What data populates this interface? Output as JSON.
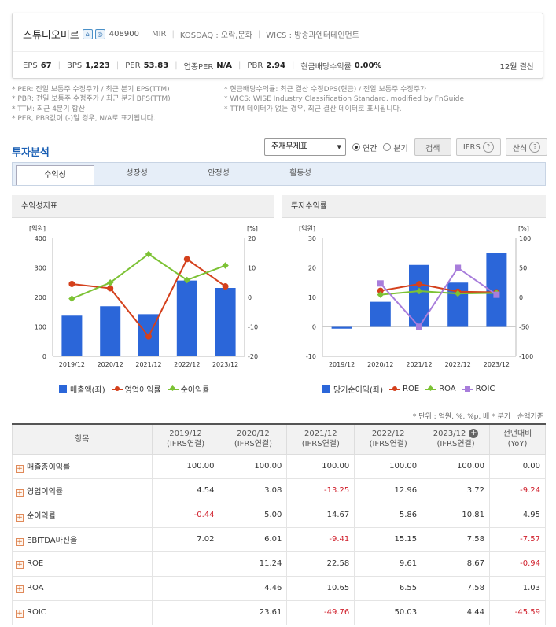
{
  "company": {
    "name": "스튜디오미르",
    "code": "408900",
    "ticker_en": "MIR",
    "market": "KOSDAQ : 오락,문화",
    "wics": "WICS : 방송과엔터테인먼트",
    "icon1": "home-icon",
    "icon2": "ir-icon"
  },
  "metrics": {
    "eps_label": "EPS",
    "eps": "67",
    "bps_label": "BPS",
    "bps": "1,223",
    "per_label": "PER",
    "per": "53.83",
    "sector_per_label": "업종PER",
    "sector_per": "N/A",
    "pbr_label": "PBR",
    "pbr": "2.94",
    "div_label": "현금배당수익률",
    "div": "0.00%",
    "fiscal": "12월 결산"
  },
  "notes": [
    "* PER: 전일 보통주 수정주가 / 최근 분기 EPS(TTM)",
    "* PBR: 전일 보통주 수정주가 / 최근 분기 BPS(TTM)",
    "* TTM: 최근 4분기 합산",
    "* PER, PBR값이 (-)일 경우, N/A로 표기됩니다.",
    "* 현금배당수익률: 최근 결산 수정DPS(현금) / 전일 보통주 수정주가",
    "* WICS: WISE Industry Classification Standard, modified by FnGuide",
    "* TTM 데이터가 없는 경우, 최근 결산 데이터로 표시됩니다."
  ],
  "section": {
    "title": "투자분석",
    "select_value": "주재무제표",
    "radio_annual": "연간",
    "radio_quarter": "분기",
    "search_btn": "검색",
    "ifrs_btn": "IFRS",
    "formula_btn": "산식"
  },
  "tabs": [
    "수익성",
    "성장성",
    "안정성",
    "활동성"
  ],
  "panels": {
    "left_title": "수익성지표",
    "right_title": "투자수익률"
  },
  "chart_data": [
    {
      "type": "bar",
      "title": "수익성지표",
      "categories": [
        "2019/12",
        "2020/12",
        "2021/12",
        "2022/12",
        "2023/12"
      ],
      "ylabel": "[억원]",
      "y2label": "[%]",
      "ylim": [
        0,
        400
      ],
      "y2lim": [
        -20,
        20
      ],
      "yticks": [
        "400",
        "300",
        "200",
        "100",
        "0"
      ],
      "y2ticks": [
        "20",
        "10",
        "0",
        "-10",
        "-20"
      ],
      "series": [
        {
          "name": "매출액(좌)",
          "type": "bar",
          "axis": "left",
          "color": "#2b66d9",
          "values": [
            138,
            170,
            143,
            257,
            232
          ]
        },
        {
          "name": "영업이익률",
          "type": "line",
          "axis": "right",
          "color": "#d4401c",
          "marker": "circle",
          "values": [
            4.54,
            3.08,
            -13.25,
            12.96,
            3.72
          ]
        },
        {
          "name": "순이익률",
          "type": "line",
          "axis": "right",
          "color": "#7cc234",
          "marker": "diamond",
          "values": [
            -0.44,
            5.0,
            14.67,
            5.86,
            10.81
          ]
        }
      ]
    },
    {
      "type": "bar",
      "title": "투자수익률",
      "categories": [
        "2019/12",
        "2020/12",
        "2021/12",
        "2022/12",
        "2023/12"
      ],
      "ylabel": "[억원]",
      "y2label": "[%]",
      "ylim": [
        -10,
        30
      ],
      "y2lim": [
        -100,
        100
      ],
      "yticks": [
        "30",
        "20",
        "10",
        "0",
        "-10"
      ],
      "y2ticks": [
        "100",
        "50",
        "0",
        "-50",
        "-100"
      ],
      "series": [
        {
          "name": "당기순이익(좌)",
          "type": "bar",
          "axis": "left",
          "color": "#2b66d9",
          "values": [
            -0.6,
            8.5,
            21,
            15,
            25
          ]
        },
        {
          "name": "ROE",
          "type": "line",
          "axis": "right",
          "color": "#d4401c",
          "marker": "circle",
          "values": [
            null,
            11.24,
            22.58,
            9.61,
            8.67
          ]
        },
        {
          "name": "ROA",
          "type": "line",
          "axis": "right",
          "color": "#7cc234",
          "marker": "diamond",
          "values": [
            null,
            4.46,
            10.65,
            6.55,
            7.58
          ]
        },
        {
          "name": "ROIC",
          "type": "line",
          "axis": "right",
          "color": "#a87ddb",
          "marker": "square",
          "values": [
            null,
            23.61,
            -49.76,
            50.03,
            4.44
          ]
        }
      ]
    }
  ],
  "unit_note": "* 단위 : 억원, %, %p, 배     * 분기 : 순액기준",
  "table": {
    "headers": [
      "항목",
      "2019/12\n(IFRS연결)",
      "2020/12\n(IFRS연결)",
      "2021/12\n(IFRS연결)",
      "2022/12\n(IFRS연결)",
      "2023/12\n(IFRS연결)",
      "전년대비\n(YoY)"
    ],
    "rows": [
      {
        "name": "매출총이익률",
        "values": [
          "100.00",
          "100.00",
          "100.00",
          "100.00",
          "100.00",
          "0.00"
        ]
      },
      {
        "name": "영업이익률",
        "values": [
          "4.54",
          "3.08",
          "-13.25",
          "12.96",
          "3.72",
          "-9.24"
        ]
      },
      {
        "name": "순이익률",
        "values": [
          "-0.44",
          "5.00",
          "14.67",
          "5.86",
          "10.81",
          "4.95"
        ]
      },
      {
        "name": "EBITDA마진율",
        "values": [
          "7.02",
          "6.01",
          "-9.41",
          "15.15",
          "7.58",
          "-7.57"
        ]
      },
      {
        "name": "ROE",
        "values": [
          "",
          "11.24",
          "22.58",
          "9.61",
          "8.67",
          "-0.94"
        ]
      },
      {
        "name": "ROA",
        "values": [
          "",
          "4.46",
          "10.65",
          "6.55",
          "7.58",
          "1.03"
        ]
      },
      {
        "name": "ROIC",
        "values": [
          "",
          "23.61",
          "-49.76",
          "50.03",
          "4.44",
          "-45.59"
        ]
      }
    ]
  }
}
